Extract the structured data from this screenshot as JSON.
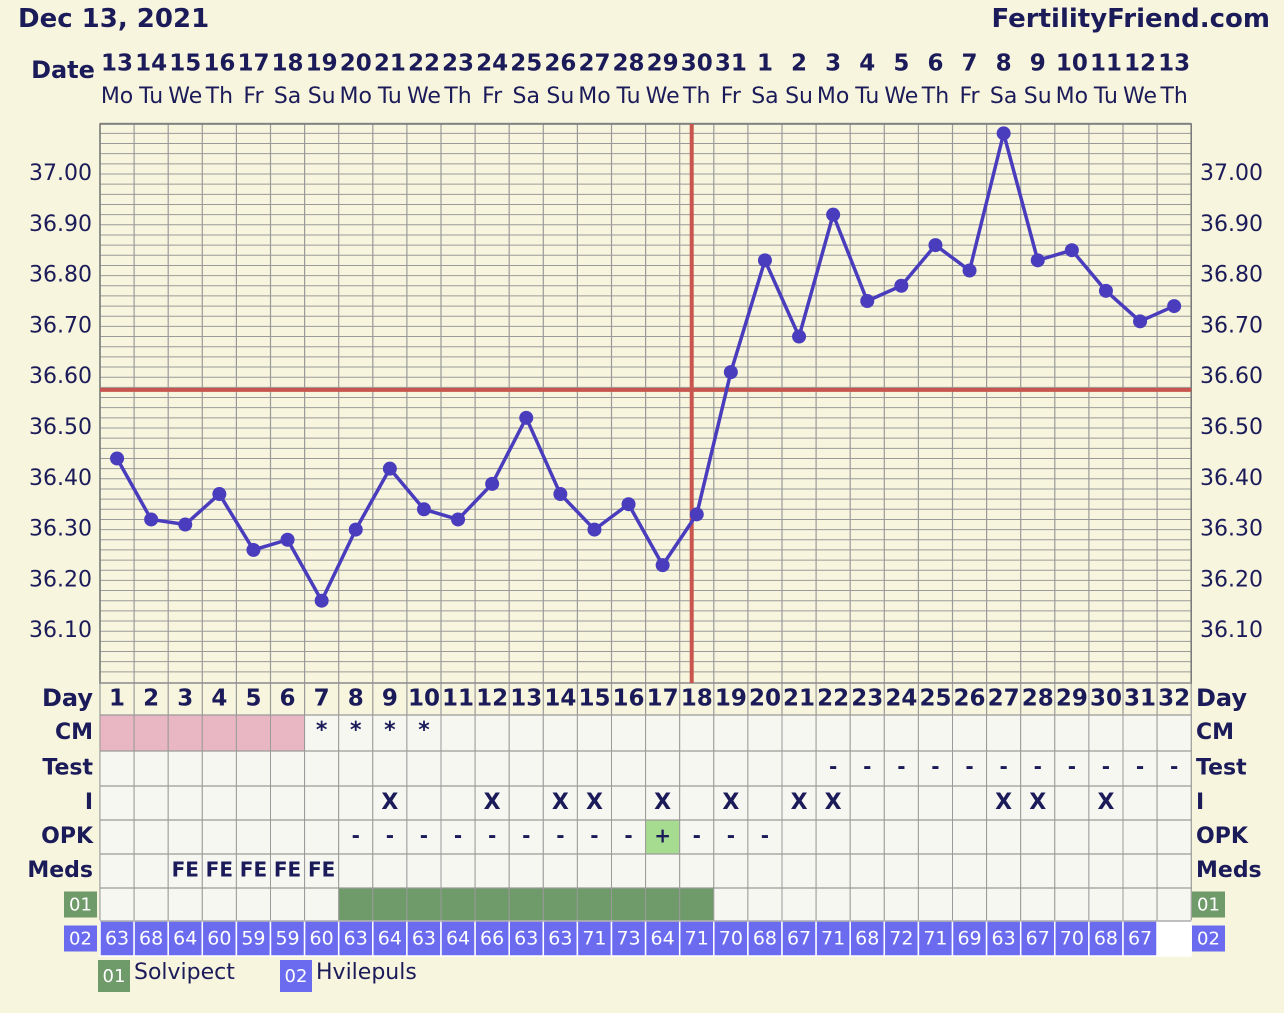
{
  "header": {
    "date": "Dec 13, 2021",
    "brand": "FertilityFriend.com"
  },
  "labels": {
    "date_row": "Date",
    "day_row": "Day",
    "cm_row": "CM",
    "test_row": "Test",
    "i_row": "I",
    "opk_row": "OPK",
    "meds_row": "Meds",
    "row01": "01",
    "row02": "02"
  },
  "legend": [
    {
      "code": "01",
      "name": "Solvipect",
      "color": "#6f9a6a"
    },
    {
      "code": "02",
      "name": "Hvilepuls",
      "color": "#6b6bf0"
    }
  ],
  "colors": {
    "line": "#4a3dbd",
    "coverline": "#c9554f",
    "menses": "#e9b7c3",
    "opk_positive": "#a5dc8f",
    "grid": "#9a9a9a",
    "background": "#f7f5dd",
    "cell_bg": "#f7f7f1"
  },
  "chart_data": {
    "type": "line",
    "dates": [
      "13",
      "14",
      "15",
      "16",
      "17",
      "18",
      "19",
      "20",
      "21",
      "22",
      "23",
      "24",
      "25",
      "26",
      "27",
      "28",
      "29",
      "30",
      "31",
      "1",
      "2",
      "3",
      "4",
      "5",
      "6",
      "7",
      "8",
      "9",
      "10",
      "11",
      "12",
      "13"
    ],
    "weekdays": [
      "Mo",
      "Tu",
      "We",
      "Th",
      "Fr",
      "Sa",
      "Su",
      "Mo",
      "Tu",
      "We",
      "Th",
      "Fr",
      "Sa",
      "Su",
      "Mo",
      "Tu",
      "We",
      "Th",
      "Fr",
      "Sa",
      "Su",
      "Mo",
      "Tu",
      "We",
      "Th",
      "Fr",
      "Sa",
      "Su",
      "Mo",
      "Tu",
      "We",
      "Th"
    ],
    "days": [
      1,
      2,
      3,
      4,
      5,
      6,
      7,
      8,
      9,
      10,
      11,
      12,
      13,
      14,
      15,
      16,
      17,
      18,
      19,
      20,
      21,
      22,
      23,
      24,
      25,
      26,
      27,
      28,
      29,
      30,
      31,
      32
    ],
    "temperatures": [
      36.44,
      36.32,
      36.31,
      36.37,
      36.26,
      36.28,
      36.16,
      36.3,
      36.42,
      36.34,
      36.32,
      36.39,
      36.52,
      36.37,
      36.3,
      36.35,
      36.23,
      36.33,
      36.61,
      36.83,
      36.68,
      36.92,
      36.75,
      36.78,
      36.86,
      36.81,
      37.08,
      36.83,
      36.85,
      36.77,
      36.71,
      36.74
    ],
    "y_ticks": [
      "36.10",
      "36.20",
      "36.30",
      "36.40",
      "36.50",
      "36.60",
      "36.70",
      "36.80",
      "36.90",
      "37.00"
    ],
    "ylim": [
      36.02,
      37.1
    ],
    "coverline": 36.575,
    "ovulation_day": 18,
    "grid": true,
    "cm": [
      "menses",
      "menses",
      "menses",
      "menses",
      "menses",
      "menses",
      "*",
      "*",
      "*",
      "*",
      "",
      "",
      "",
      "",
      "",
      "",
      "",
      "",
      "",
      "",
      "",
      "",
      "",
      "",
      "",
      "",
      "",
      "",
      "",
      "",
      "",
      ""
    ],
    "test": [
      "",
      "",
      "",
      "",
      "",
      "",
      "",
      "",
      "",
      "",
      "",
      "",
      "",
      "",
      "",
      "",
      "",
      "",
      "",
      "",
      "",
      "-",
      "-",
      "-",
      "-",
      "-",
      "-",
      "-",
      "-",
      "-",
      "-",
      "-"
    ],
    "intercourse": [
      "",
      "",
      "",
      "",
      "",
      "",
      "",
      "",
      "X",
      "",
      "",
      "X",
      "",
      "X",
      "X",
      "",
      "X",
      "",
      "X",
      "",
      "X",
      "X",
      "",
      "",
      "",
      "",
      "X",
      "X",
      "",
      "X",
      "",
      ""
    ],
    "opk": [
      "",
      "",
      "",
      "",
      "",
      "",
      "",
      "-",
      "-",
      "-",
      "-",
      "-",
      "-",
      "-",
      "-",
      "-",
      "+",
      "-",
      "-",
      "-",
      "",
      "",
      "",
      "",
      "",
      "",
      "",
      "",
      "",
      "",
      "",
      ""
    ],
    "meds": [
      "",
      "",
      "FE",
      "FE",
      "FE",
      "FE",
      "FE",
      "",
      "",
      "",
      "",
      "",
      "",
      "",
      "",
      "",
      "",
      "",
      "",
      "",
      "",
      "",
      "",
      "",
      "",
      "",
      "",
      "",
      "",
      "",
      "",
      ""
    ],
    "solvipect": [
      false,
      false,
      false,
      false,
      false,
      false,
      false,
      true,
      true,
      true,
      true,
      true,
      true,
      true,
      true,
      true,
      true,
      true,
      false,
      false,
      false,
      false,
      false,
      false,
      false,
      false,
      false,
      false,
      false,
      false,
      false,
      false
    ],
    "hvilepuls": [
      "63",
      "68",
      "64",
      "60",
      "59",
      "59",
      "60",
      "63",
      "64",
      "63",
      "64",
      "66",
      "63",
      "63",
      "71",
      "73",
      "64",
      "71",
      "70",
      "68",
      "67",
      "71",
      "68",
      "72",
      "71",
      "69",
      "63",
      "67",
      "70",
      "68",
      "67",
      ""
    ]
  }
}
